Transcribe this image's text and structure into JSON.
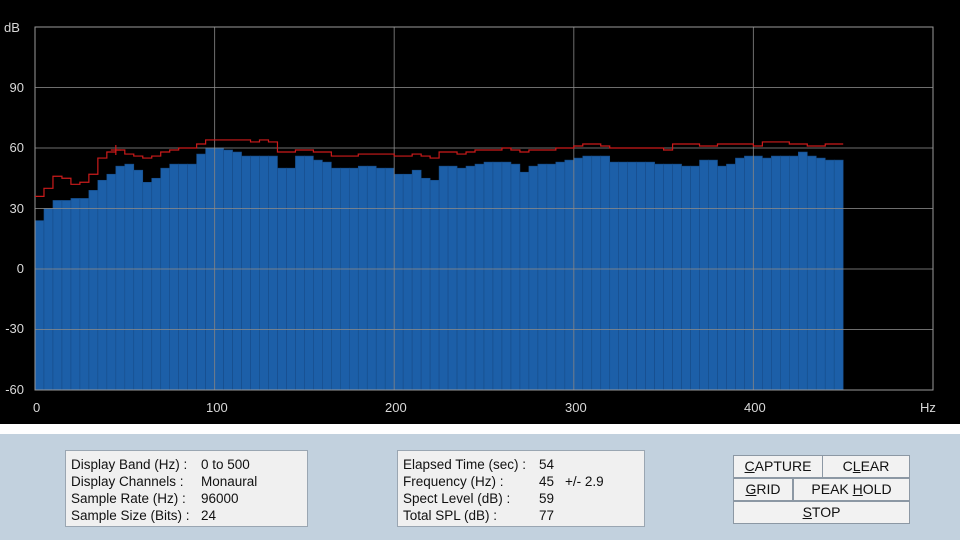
{
  "chart_data": {
    "type": "bar",
    "ylabel": "dB",
    "xlabel": "Hz",
    "xlim": [
      0,
      500
    ],
    "ylim": [
      -60,
      120
    ],
    "y_ticks": [
      "90",
      "60",
      "30",
      "0",
      "-30",
      "-60"
    ],
    "x_ticks": [
      "0",
      "100",
      "200",
      "300",
      "400"
    ],
    "grid": true,
    "bin_width_hz": 5,
    "colors": {
      "bars": "#1c5fa8",
      "peak": "#cc1b1b",
      "grid": "#8a8a8a",
      "background": "#000000"
    },
    "series": [
      {
        "name": "Spectrum",
        "values": [
          24,
          30,
          34,
          34,
          35,
          35,
          39,
          44,
          47,
          51,
          52,
          49,
          43,
          45,
          50,
          52,
          52,
          52,
          57,
          60,
          60,
          59,
          58,
          56,
          56,
          56,
          56,
          50,
          50,
          56,
          56,
          54,
          53,
          50,
          50,
          50,
          51,
          51,
          50,
          50,
          47,
          47,
          49,
          45,
          44,
          51,
          51,
          50,
          51,
          52,
          53,
          53,
          53,
          52,
          48,
          51,
          52,
          52,
          53,
          54,
          55,
          56,
          56,
          56,
          53,
          53,
          53,
          53,
          53,
          52,
          52,
          52,
          51,
          51,
          54,
          54,
          51,
          52,
          55,
          56,
          56,
          55,
          56,
          56,
          56,
          58,
          56,
          55,
          54,
          54
        ]
      },
      {
        "name": "Peak Hold",
        "values": [
          36,
          40,
          46,
          45,
          42,
          43,
          47,
          55,
          58,
          59,
          57,
          56,
          55,
          56,
          58,
          59,
          60,
          60,
          62,
          64,
          64,
          64,
          64,
          64,
          63,
          64,
          63,
          58,
          58,
          59,
          59,
          58,
          58,
          56,
          56,
          56,
          57,
          57,
          57,
          57,
          56,
          56,
          57,
          56,
          55,
          58,
          58,
          57,
          58,
          59,
          59,
          59,
          60,
          59,
          58,
          59,
          59,
          59,
          60,
          60,
          61,
          62,
          62,
          61,
          60,
          60,
          60,
          60,
          60,
          60,
          59,
          62,
          62,
          62,
          61,
          61,
          62,
          62,
          62,
          62,
          61,
          63,
          63,
          63,
          62,
          62,
          61,
          61,
          62,
          62
        ]
      }
    ],
    "marker": {
      "x": 45,
      "y": 59,
      "label": "+"
    }
  },
  "info_left": {
    "rows": [
      {
        "label": "Display Band (Hz) :",
        "value": "0 to 500"
      },
      {
        "label": "Display Channels :",
        "value": "Monaural"
      },
      {
        "label": "Sample Rate (Hz) :",
        "value": "96000"
      },
      {
        "label": "Sample Size (Bits) :",
        "value": "24"
      }
    ]
  },
  "info_right": {
    "rows": [
      {
        "label": "Elapsed Time (sec) :",
        "value": "54",
        "extra": ""
      },
      {
        "label": "Frequency (Hz) :",
        "value": "45",
        "extra": "+/- 2.9"
      },
      {
        "label": "Spect Level (dB) :",
        "value": "59",
        "extra": ""
      },
      {
        "label": "Total SPL (dB) :",
        "value": "77",
        "extra": ""
      }
    ]
  },
  "buttons": {
    "capture": {
      "pre": "",
      "key": "C",
      "post": "APTURE"
    },
    "clear": {
      "pre": "C",
      "key": "L",
      "post": "EAR"
    },
    "grid": {
      "pre": "",
      "key": "G",
      "post": "RID"
    },
    "peak_hold": {
      "pre": "PEAK ",
      "key": "H",
      "post": "OLD"
    },
    "stop": {
      "pre": "",
      "key": "S",
      "post": "TOP"
    }
  }
}
